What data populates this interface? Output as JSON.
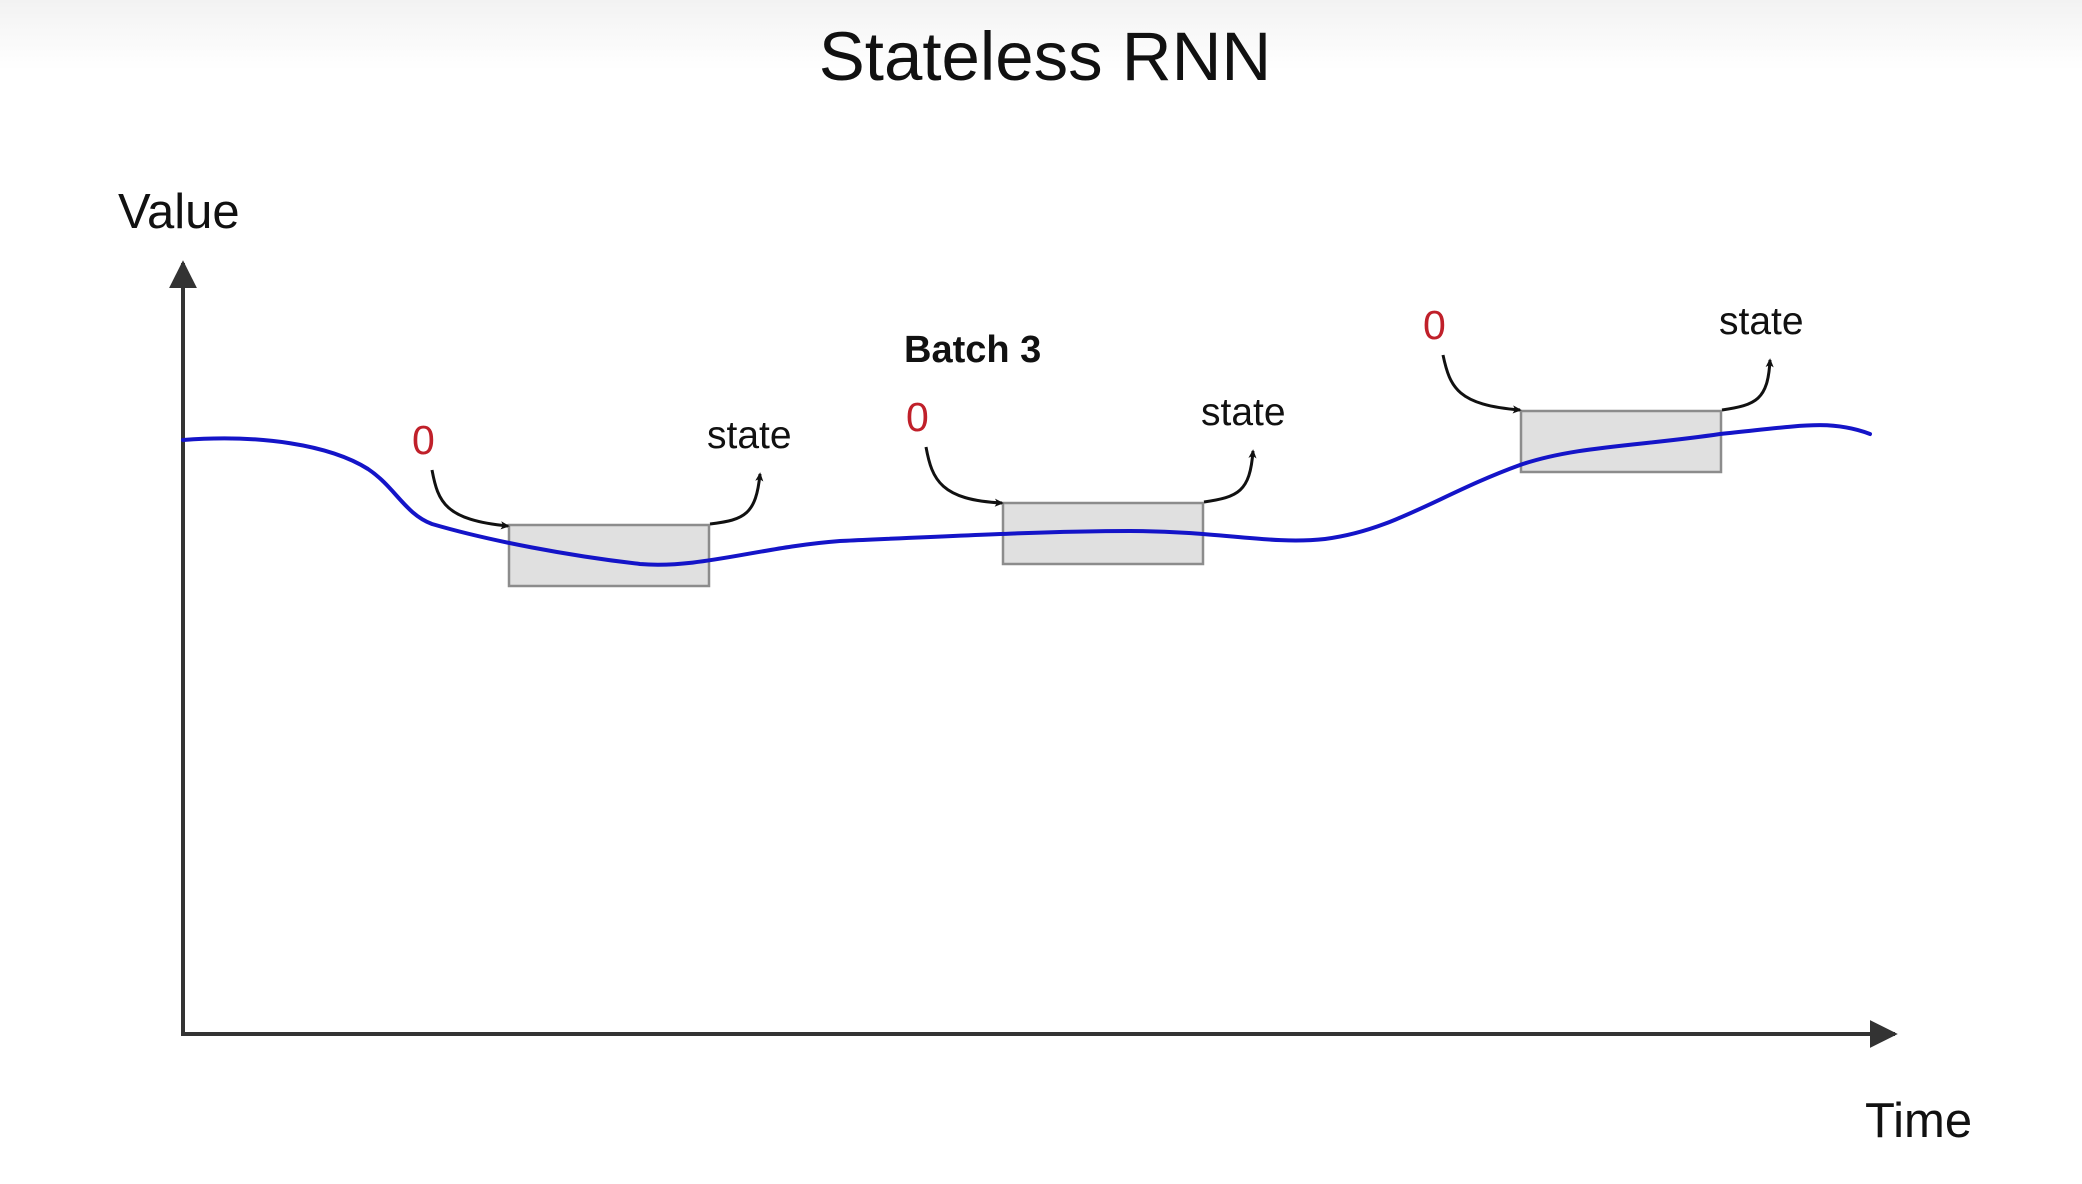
{
  "title": "Stateless RNN",
  "axes": {
    "y_label": "Value",
    "x_label": "Time"
  },
  "batch_label": "Batch 3",
  "windows": [
    {
      "initial_state": "0",
      "output": "state"
    },
    {
      "initial_state": "0",
      "output": "state"
    },
    {
      "initial_state": "0",
      "output": "state"
    }
  ],
  "colors": {
    "series_line": "#1414c8",
    "window_fill": "#e0e0e0",
    "window_stroke": "#8c8c8c",
    "zero_text": "#c0202a",
    "axis": "#333333",
    "arrow": "#111111"
  }
}
